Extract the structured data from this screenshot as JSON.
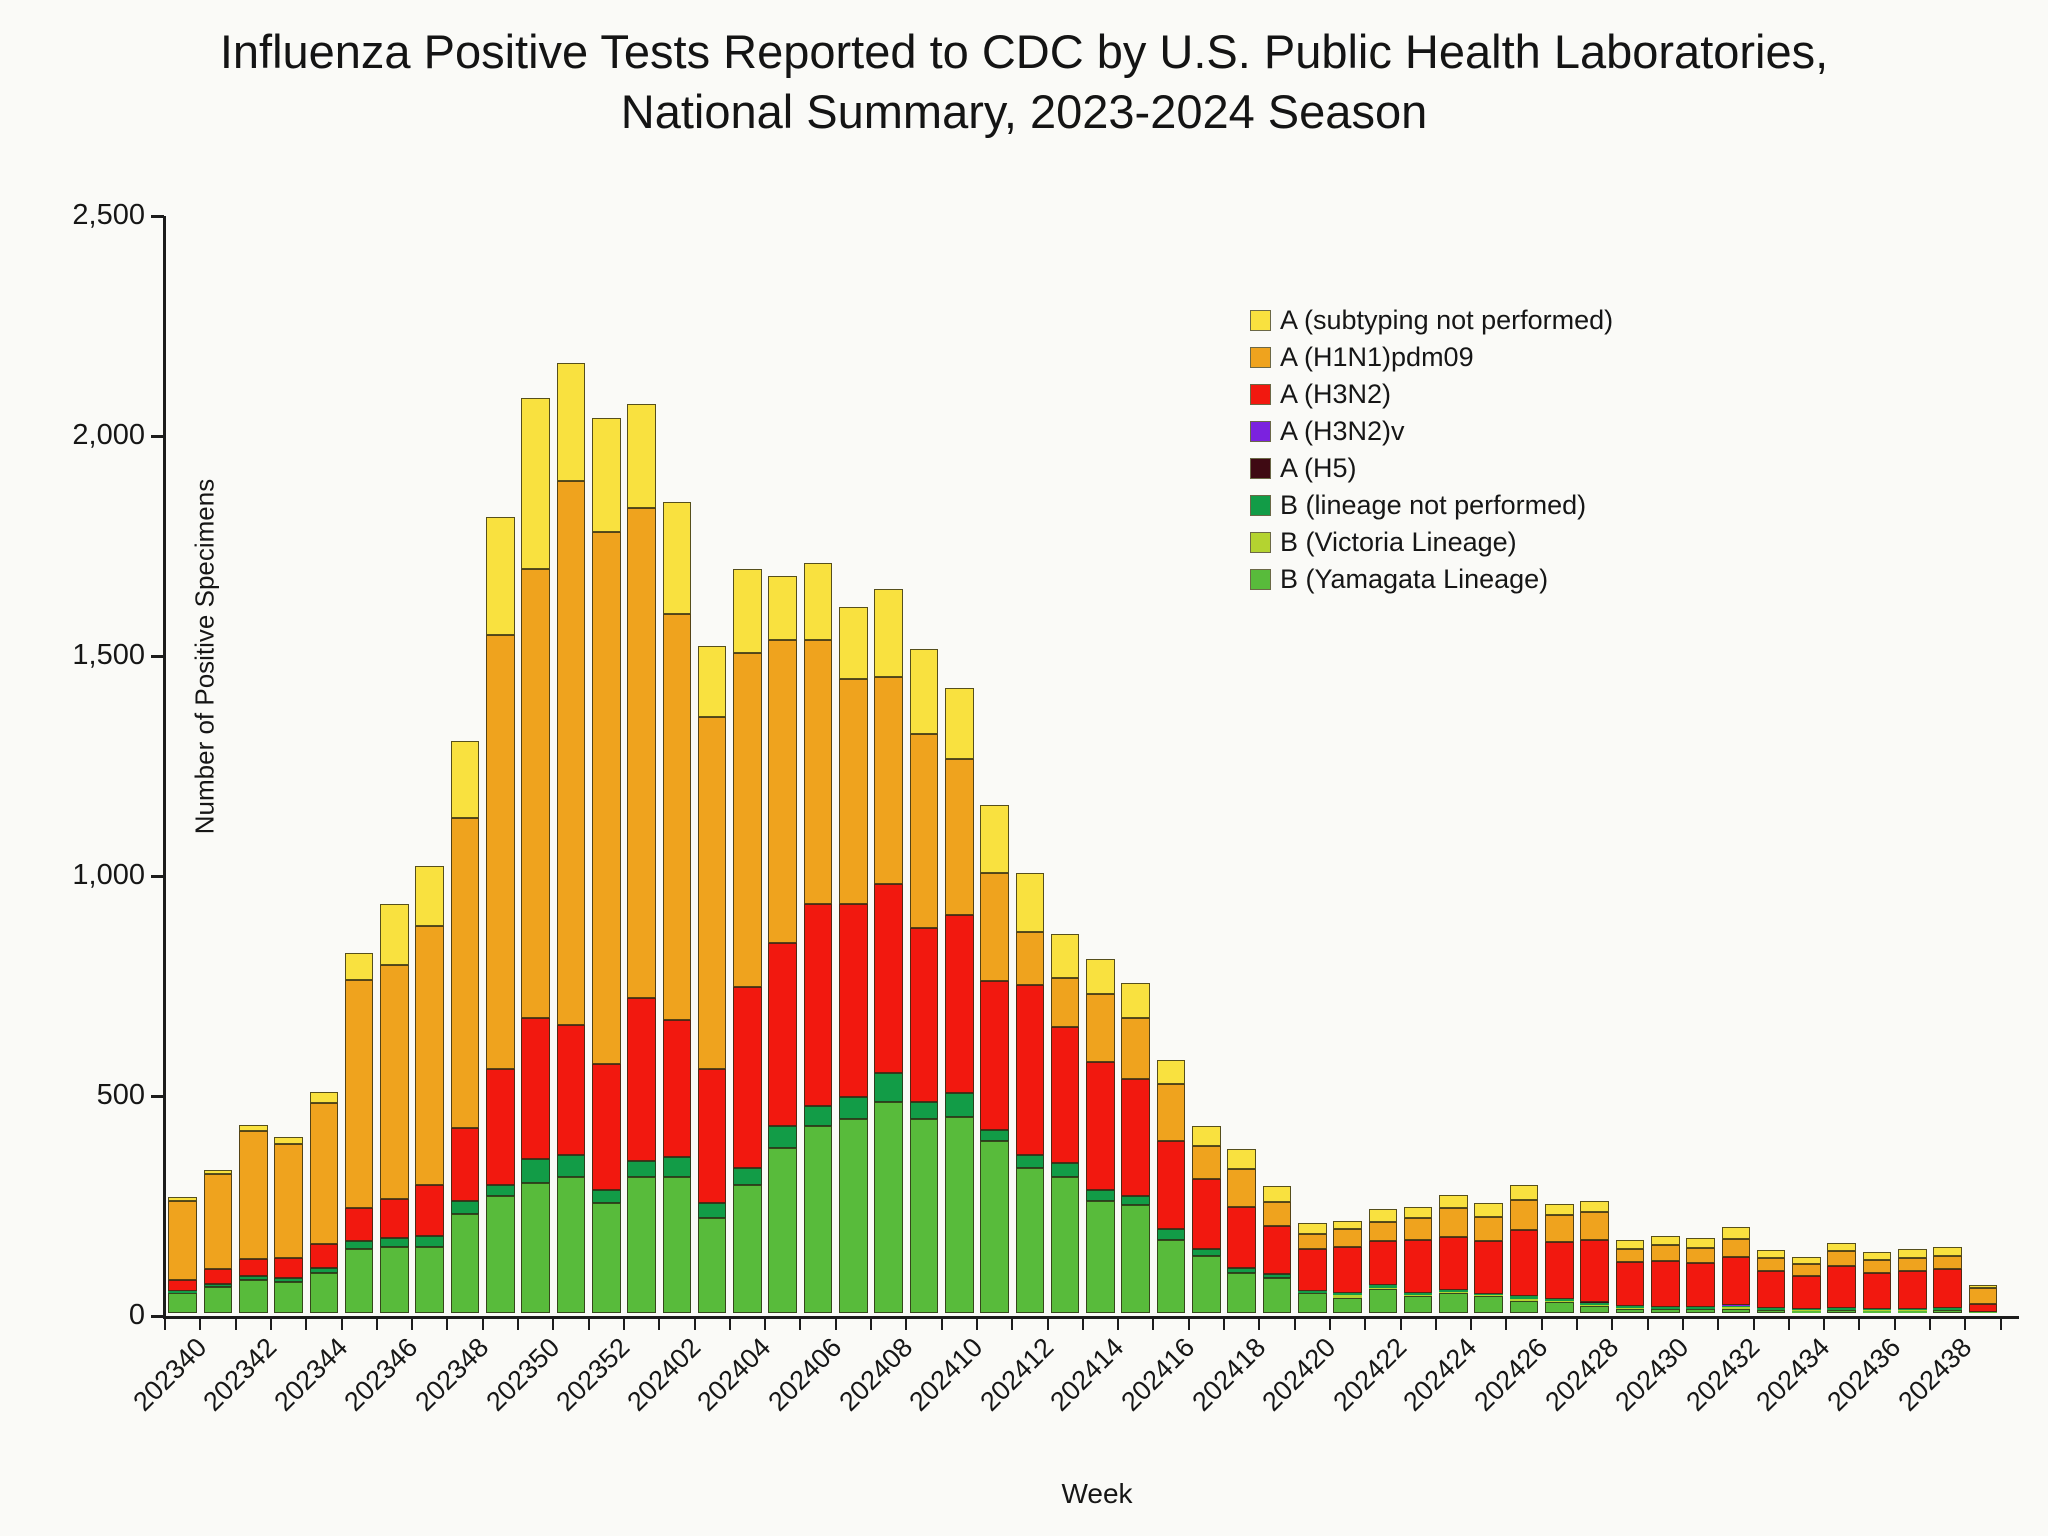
{
  "title": {
    "line1": "Influenza Positive Tests Reported to CDC by U.S. Public Health Laboratories,",
    "line2": "National Summary, 2023-2024 Season"
  },
  "y_axis": {
    "label": "Number of Positive Specimens",
    "ticks": [
      "0",
      "500",
      "1,000",
      "1,500",
      "2,000",
      "2,500"
    ],
    "max": 2500
  },
  "x_axis": {
    "label": "Week",
    "label_every_n_bars": 2
  },
  "legend": {
    "position": "upper-right-inside",
    "items": [
      {
        "label": "A (subtyping not performed)",
        "color": "#f9e13f"
      },
      {
        "label": "A (H1N1)pdm09",
        "color": "#efa31e"
      },
      {
        "label": "A (H3N2)",
        "color": "#f2180f"
      },
      {
        "label": "A (H3N2)v",
        "color": "#7b22df"
      },
      {
        "label": "A (H5)",
        "color": "#3f0a13"
      },
      {
        "label": "B (lineage not performed)",
        "color": "#129c47"
      },
      {
        "label": "B (Victoria Lineage)",
        "color": "#b4d330"
      },
      {
        "label": "B (Yamagata Lineage)",
        "color": "#58bb3b"
      }
    ]
  },
  "chart_data": {
    "type": "bar",
    "subtype": "stacked-vertical",
    "title": "Influenza Positive Tests Reported to CDC by U.S. Public Health Laboratories, National Summary, 2023-2024 Season",
    "xlabel": "Week",
    "ylabel": "Number of Positive Specimens",
    "ylim": [
      0,
      2500
    ],
    "grid": false,
    "stack_order": "last series listed is at the bottom of each stack",
    "categories": [
      "202340",
      "202341",
      "202342",
      "202343",
      "202344",
      "202345",
      "202346",
      "202347",
      "202348",
      "202349",
      "202350",
      "202351",
      "202352",
      "202401",
      "202402",
      "202403",
      "202404",
      "202405",
      "202406",
      "202407",
      "202408",
      "202409",
      "202410",
      "202411",
      "202412",
      "202413",
      "202414",
      "202415",
      "202416",
      "202417",
      "202418",
      "202419",
      "202420",
      "202421",
      "202422",
      "202423",
      "202424",
      "202425",
      "202426",
      "202427",
      "202428",
      "202429",
      "202430",
      "202431",
      "202432",
      "202433",
      "202434",
      "202435",
      "202436",
      "202437",
      "202438",
      "202439"
    ],
    "series": [
      {
        "name": "A (subtyping not performed)",
        "color": "#f9e13f",
        "values": [
          8,
          10,
          15,
          15,
          25,
          60,
          140,
          135,
          175,
          270,
          390,
          270,
          260,
          235,
          255,
          160,
          190,
          145,
          175,
          165,
          200,
          195,
          160,
          155,
          135,
          100,
          80,
          80,
          55,
          45,
          45,
          35,
          25,
          20,
          28,
          25,
          30,
          30,
          32,
          25,
          25,
          20,
          20,
          22,
          28,
          18,
          15,
          18,
          18,
          20,
          22,
          8
        ]
      },
      {
        "name": "A (H1N1)pdm09",
        "color": "#efa31e",
        "values": [
          180,
          215,
          290,
          260,
          320,
          520,
          530,
          590,
          705,
          985,
          1020,
          1235,
          1210,
          1115,
          923,
          800,
          760,
          690,
          600,
          510,
          470,
          440,
          355,
          245,
          120,
          110,
          155,
          140,
          130,
          75,
          85,
          55,
          35,
          40,
          45,
          50,
          65,
          55,
          70,
          60,
          65,
          30,
          35,
          35,
          40,
          30,
          28,
          35,
          30,
          30,
          28,
          35
        ]
      },
      {
        "name": "A (H3N2)",
        "color": "#f2180f",
        "values": [
          25,
          35,
          40,
          45,
          55,
          75,
          90,
          115,
          165,
          265,
          320,
          295,
          285,
          370,
          310,
          305,
          410,
          415,
          460,
          440,
          430,
          395,
          405,
          340,
          385,
          310,
          290,
          265,
          200,
          160,
          140,
          110,
          95,
          105,
          100,
          120,
          120,
          120,
          150,
          130,
          140,
          100,
          105,
          100,
          110,
          85,
          75,
          95,
          80,
          85,
          90,
          18
        ]
      },
      {
        "name": "A (H3N2)v",
        "color": "#7b22df",
        "values": [
          0,
          0,
          0,
          0,
          0,
          0,
          0,
          0,
          0,
          0,
          0,
          0,
          0,
          0,
          0,
          0,
          0,
          0,
          0,
          0,
          0,
          0,
          0,
          0,
          0,
          0,
          0,
          0,
          0,
          0,
          0,
          0,
          0,
          0,
          0,
          0,
          0,
          0,
          0,
          0,
          0,
          0,
          1,
          0,
          1,
          0,
          0,
          1,
          0,
          0,
          0,
          0
        ]
      },
      {
        "name": "A (H5)",
        "color": "#3f0a13",
        "values": [
          0,
          0,
          0,
          0,
          0,
          0,
          0,
          0,
          0,
          0,
          0,
          0,
          0,
          0,
          0,
          0,
          0,
          0,
          0,
          0,
          0,
          0,
          0,
          0,
          0,
          1,
          0,
          1,
          0,
          0,
          0,
          0,
          0,
          0,
          0,
          0,
          0,
          0,
          0,
          0,
          2,
          1,
          0,
          0,
          0,
          0,
          0,
          0,
          1,
          0,
          0,
          0
        ]
      },
      {
        "name": "B (lineage not performed)",
        "color": "#129c47",
        "values": [
          5,
          6,
          8,
          10,
          12,
          18,
          20,
          25,
          30,
          25,
          55,
          50,
          30,
          35,
          45,
          35,
          40,
          50,
          45,
          50,
          65,
          40,
          55,
          25,
          30,
          30,
          25,
          20,
          25,
          15,
          12,
          8,
          5,
          5,
          5,
          5,
          5,
          4,
          5,
          4,
          5,
          3,
          3,
          3,
          4,
          3,
          2,
          3,
          2,
          3,
          3,
          1
        ]
      },
      {
        "name": "B (Victoria Lineage)",
        "color": "#b4d330",
        "values": [
          0,
          0,
          0,
          0,
          0,
          0,
          0,
          0,
          0,
          0,
          0,
          0,
          0,
          0,
          0,
          0,
          0,
          0,
          0,
          0,
          0,
          0,
          0,
          0,
          0,
          0,
          0,
          0,
          0,
          0,
          0,
          0,
          0,
          5,
          3,
          2,
          3,
          2,
          5,
          3,
          3,
          2,
          2,
          2,
          3,
          2,
          2,
          2,
          2,
          2,
          2,
          0
        ]
      },
      {
        "name": "B (Yamagata Lineage)",
        "color": "#58bb3b",
        "values": [
          45,
          60,
          75,
          70,
          90,
          145,
          150,
          150,
          225,
          265,
          295,
          310,
          250,
          310,
          310,
          215,
          290,
          375,
          425,
          440,
          480,
          440,
          445,
          390,
          330,
          310,
          255,
          245,
          165,
          130,
          90,
          80,
          45,
          35,
          55,
          38,
          45,
          38,
          28,
          25,
          15,
          10,
          8,
          8,
          10,
          6,
          5,
          6,
          5,
          5,
          6,
          2
        ]
      }
    ]
  }
}
